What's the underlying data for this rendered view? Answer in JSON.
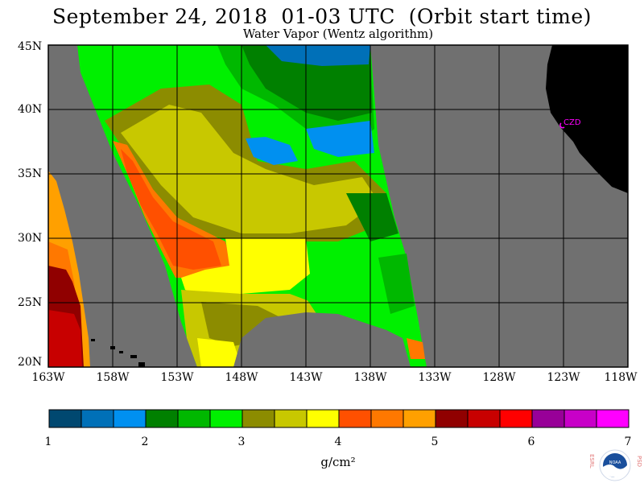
{
  "header": {
    "title": "September 24, 2018  01-03 UTC  (Orbit start time)",
    "subtitle": "Water Vapor (Wentz algorithm)"
  },
  "map": {
    "lat_labels": [
      "45N",
      "40N",
      "35N",
      "30N",
      "25N",
      "20N"
    ],
    "lon_labels": [
      "163W",
      "158W",
      "153W",
      "148W",
      "143W",
      "138W",
      "133W",
      "128W",
      "123W",
      "118W"
    ],
    "station_label": "CZD",
    "colors": {
      "no_data": "#707070",
      "land": "#000000",
      "gridlines": "#000000",
      "station": "#ff00ff"
    }
  },
  "colorbar": {
    "ticks": [
      "1",
      "2",
      "3",
      "4",
      "5",
      "6",
      "7"
    ],
    "unit": "g/cm²",
    "colors": [
      "#004870",
      "#0070b8",
      "#0090f0",
      "#008000",
      "#00b800",
      "#00f000",
      "#8c8c00",
      "#c8c800",
      "#ffff00",
      "#ff5000",
      "#ff7800",
      "#ffa000",
      "#900000",
      "#c80000",
      "#ff0000",
      "#980098",
      "#c800c8",
      "#ff00ff"
    ]
  },
  "logo": {
    "left_letters": "ESRL",
    "right_letters": "PSD",
    "center_text": "NOAA"
  }
}
